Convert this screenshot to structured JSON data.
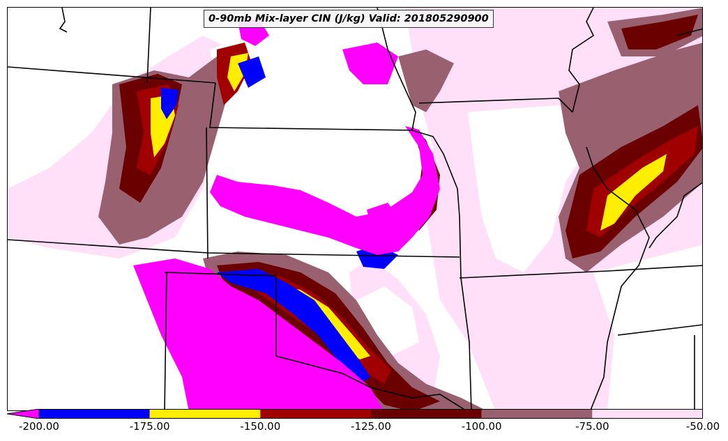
{
  "title": "0-90mb Mix-layer CIN (J/kg) Valid: 201805290900",
  "colorbar": {
    "ticks": [
      "-200.00",
      "-175.00",
      "-150.00",
      "-125.00",
      "-100.00",
      "-75.00",
      "-50.00"
    ],
    "bins": [
      {
        "from": -200,
        "to": -175,
        "color": "#0000ff"
      },
      {
        "from": -175,
        "to": -150,
        "color": "#ffee00"
      },
      {
        "from": -150,
        "to": -125,
        "color": "#a00000"
      },
      {
        "from": -125,
        "to": -100,
        "color": "#6b0000"
      },
      {
        "from": -100,
        "to": -75,
        "color": "#996070"
      },
      {
        "from": -75,
        "to": -50,
        "color": "#ffe0f8"
      }
    ],
    "under_color": "#ff00ff",
    "range": [
      -200,
      -50
    ]
  },
  "legend_colors": {
    "strong_cin": "#ff00ff",
    "band_blue": "#0000ff",
    "band_yellow": "#ffee00",
    "band_red": "#a00000",
    "band_darkred": "#6b0000",
    "band_mauve": "#996070",
    "band_pink": "#ffe0f8",
    "borders": "#000000"
  }
}
